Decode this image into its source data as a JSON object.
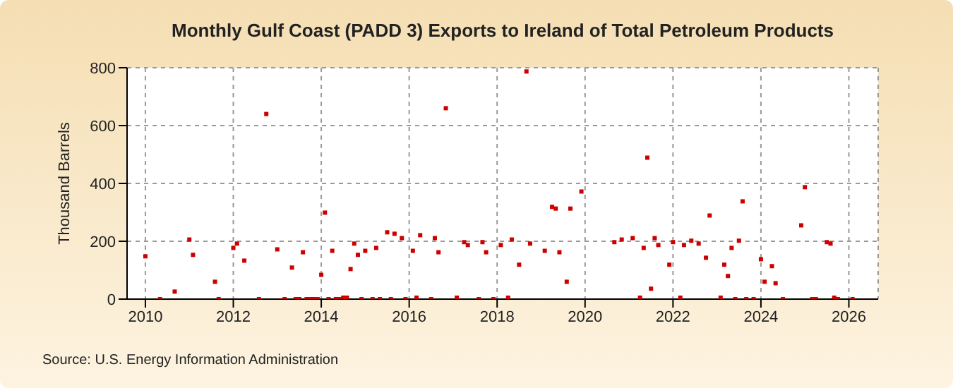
{
  "chart_data": {
    "type": "scatter",
    "title": "Monthly Gulf Coast (PADD 3) Exports to Ireland of Total Petroleum Products",
    "ylabel": "Thousand Barrels",
    "annotations": [
      "Source: U.S. Energy Information Administration"
    ],
    "x": [
      "2010-01",
      "2010-05",
      "2010-09",
      "2011-01",
      "2011-02",
      "2011-08",
      "2011-09",
      "2012-01",
      "2012-02",
      "2012-04",
      "2012-08",
      "2012-10",
      "2013-01",
      "2013-03",
      "2013-05",
      "2013-06",
      "2013-07",
      "2013-08",
      "2013-09",
      "2013-10",
      "2013-11",
      "2013-12",
      "2014-01",
      "2014-02",
      "2014-03",
      "2014-04",
      "2014-05",
      "2014-06",
      "2014-07",
      "2014-08",
      "2014-09",
      "2014-10",
      "2014-11",
      "2014-12",
      "2015-01",
      "2015-03",
      "2015-04",
      "2015-05",
      "2015-07",
      "2015-08",
      "2015-09",
      "2015-11",
      "2015-12",
      "2016-02",
      "2016-03",
      "2016-04",
      "2016-07",
      "2016-08",
      "2016-09",
      "2016-11",
      "2017-02",
      "2017-04",
      "2017-05",
      "2017-08",
      "2017-09",
      "2017-10",
      "2017-12",
      "2018-02",
      "2018-04",
      "2018-05",
      "2018-07",
      "2018-09",
      "2018-10",
      "2019-02",
      "2019-04",
      "2019-05",
      "2019-06",
      "2019-08",
      "2019-09",
      "2019-12",
      "2020-09",
      "2020-11",
      "2021-02",
      "2021-04",
      "2021-05",
      "2021-06",
      "2021-07",
      "2021-08",
      "2021-09",
      "2021-12",
      "2022-01",
      "2022-03",
      "2022-04",
      "2022-06",
      "2022-08",
      "2022-10",
      "2022-11",
      "2023-02",
      "2023-03",
      "2023-04",
      "2023-05",
      "2023-06",
      "2023-07",
      "2023-08",
      "2023-09",
      "2023-11",
      "2024-01",
      "2024-02",
      "2024-04",
      "2024-05",
      "2024-07",
      "2024-12",
      "2025-01",
      "2025-03",
      "2025-04",
      "2025-07",
      "2025-08",
      "2025-09",
      "2025-10",
      "2026-02"
    ],
    "series": [
      {
        "color": "#cc0000",
        "values": [
          148,
          0,
          26,
          206,
          153,
          60,
          0,
          177,
          192,
          133,
          0,
          640,
          172,
          0,
          109,
          0,
          0,
          162,
          0,
          0,
          0,
          0,
          84,
          299,
          0,
          167,
          0,
          0,
          5,
          5,
          104,
          192,
          153,
          0,
          167,
          0,
          177,
          0,
          231,
          0,
          226,
          211,
          0,
          167,
          5,
          221,
          0,
          211,
          162,
          660,
          5,
          197,
          187,
          0,
          197,
          162,
          0,
          187,
          5,
          206,
          119,
          787,
          192,
          167,
          319,
          313,
          162,
          60,
          313,
          372,
          197,
          206,
          211,
          5,
          177,
          489,
          36,
          211,
          187,
          119,
          197,
          5,
          187,
          202,
          192,
          143,
          289,
          5,
          119,
          80,
          177,
          0,
          202,
          338,
          0,
          0,
          138,
          60,
          114,
          55,
          0,
          255,
          387,
          0,
          0,
          197,
          192,
          5,
          0,
          0
        ]
      }
    ],
    "xlim": [
      "2009-08",
      "2026-09"
    ],
    "xticks": [
      {
        "value": "2010",
        "label": "2010"
      },
      {
        "value": "2012",
        "label": "2012"
      },
      {
        "value": "2014",
        "label": "2014"
      },
      {
        "value": "2016",
        "label": "2016"
      },
      {
        "value": "2018",
        "label": "2018"
      },
      {
        "value": "2020",
        "label": "2020"
      },
      {
        "value": "2022",
        "label": "2022"
      },
      {
        "value": "2024",
        "label": "2024"
      },
      {
        "value": "2026",
        "label": "2026"
      }
    ],
    "ylim": [
      0,
      800
    ],
    "yticks": [
      0,
      200,
      400,
      600,
      800
    ],
    "grid": true,
    "marker": "square"
  }
}
